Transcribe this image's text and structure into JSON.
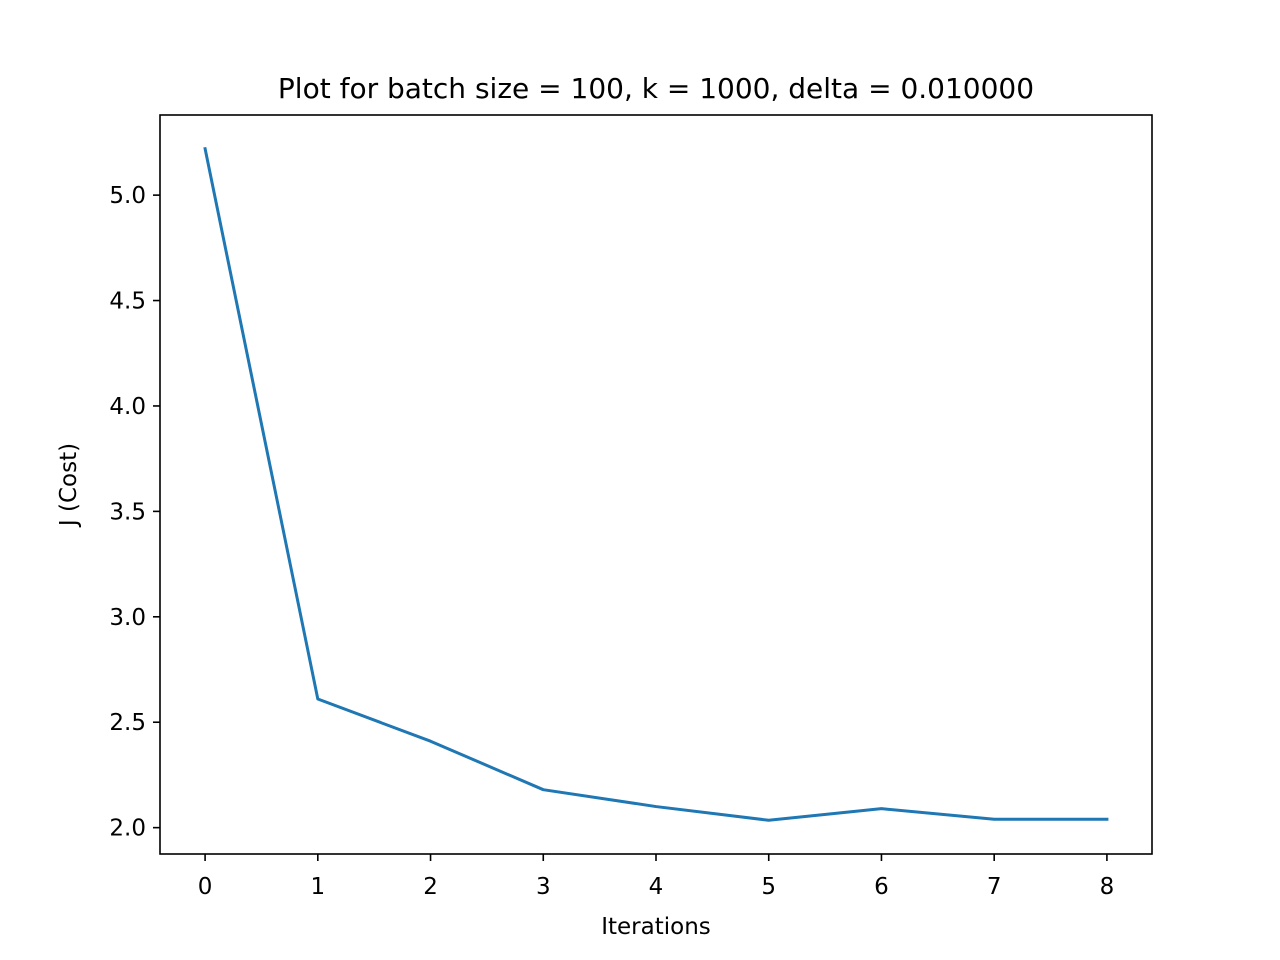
{
  "chart_data": {
    "type": "line",
    "title": "Plot for batch size = 100, k = 1000, delta = 0.010000",
    "xlabel": "Iterations",
    "ylabel": "J (Cost)",
    "xlim": [
      -0.4,
      8.4
    ],
    "ylim": [
      1.875,
      5.38
    ],
    "x_ticks": [
      0,
      1,
      2,
      3,
      4,
      5,
      6,
      7,
      8
    ],
    "x_tick_labels": [
      "0",
      "1",
      "2",
      "3",
      "4",
      "5",
      "6",
      "7",
      "8"
    ],
    "y_ticks": [
      2.0,
      2.5,
      3.0,
      3.5,
      4.0,
      4.5,
      5.0
    ],
    "y_tick_labels": [
      "2.0",
      "2.5",
      "3.0",
      "3.5",
      "4.0",
      "4.5",
      "5.0"
    ],
    "grid": false,
    "series": [
      {
        "color": "#1f77b4",
        "x": [
          0,
          1,
          2,
          3,
          4,
          5,
          6,
          7,
          8
        ],
        "y": [
          5.22,
          2.61,
          2.41,
          2.18,
          2.1,
          2.035,
          2.09,
          2.04,
          2.04
        ]
      }
    ]
  }
}
